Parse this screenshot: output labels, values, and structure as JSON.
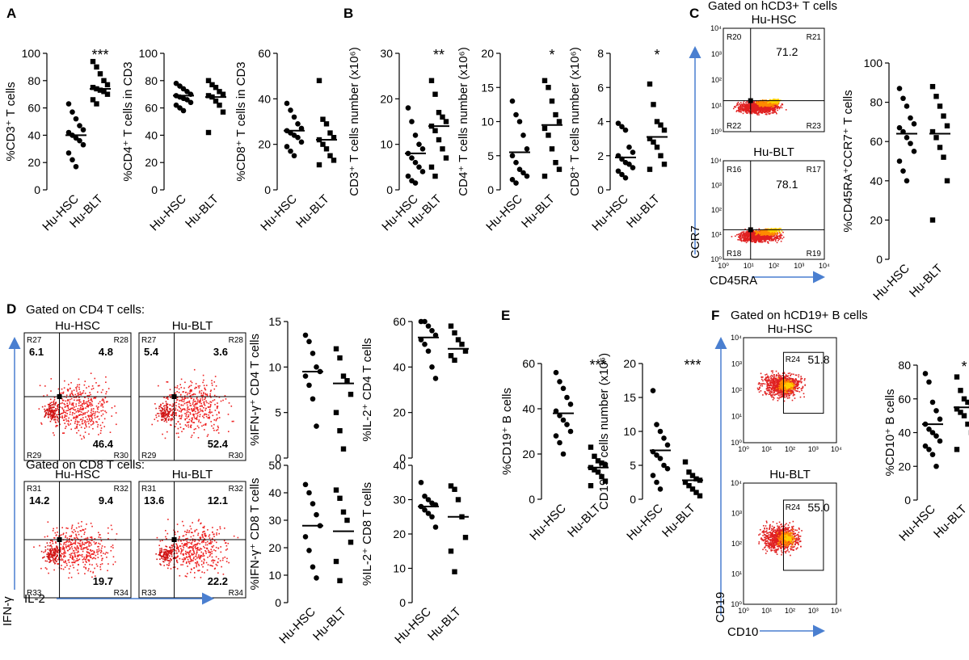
{
  "panels": {
    "A": "A",
    "B": "B",
    "C": "C",
    "D": "D",
    "E": "E",
    "F": "F"
  },
  "group_labels": [
    "Hu-HSC",
    "Hu-BLT"
  ],
  "titles": {
    "C_gate": "Gated on hCD3+ T cells",
    "D_gate_cd4": "Gated on CD4 T cells:",
    "D_gate_cd8": "Gated on CD8 T cells:",
    "F_gate": "Gated on hCD19+ B cells"
  },
  "flow": {
    "C1": {
      "title": "Hu-HSC",
      "value": "71.2",
      "regions": [
        "R20",
        "R21",
        "R22",
        "R23"
      ]
    },
    "C2": {
      "title": "Hu-BLT",
      "value": "78.1",
      "regions": [
        "R16",
        "R17",
        "R18",
        "R19"
      ]
    },
    "C_axes": {
      "y": "CCR7",
      "x": "CD45RA"
    },
    "D_cd4_hsc": {
      "title": "Hu-HSC",
      "q": [
        "6.1",
        "4.8",
        "46.4"
      ],
      "regions": [
        "R27",
        "R28",
        "R29",
        "R30"
      ]
    },
    "D_cd4_blt": {
      "title": "Hu-BLT",
      "q": [
        "5.4",
        "3.6",
        "52.4"
      ],
      "regions": [
        "R27",
        "R28",
        "R29",
        "R30"
      ]
    },
    "D_cd8_hsc": {
      "title": "Hu-HSC",
      "q": [
        "14.2",
        "9.4",
        "19.7"
      ],
      "regions": [
        "R31",
        "R32",
        "R33",
        "R34"
      ]
    },
    "D_cd8_blt": {
      "title": "Hu-BLT",
      "q": [
        "13.6",
        "12.1",
        "22.2"
      ],
      "regions": [
        "R31",
        "R32",
        "R33",
        "R34"
      ]
    },
    "D_axes": {
      "y": "IFN-γ",
      "x": "IL-2"
    },
    "F1": {
      "title": "Hu-HSC",
      "value": "51.8",
      "region": "R24"
    },
    "F2": {
      "title": "Hu-BLT",
      "value": "55.0",
      "region": "R24"
    },
    "F_axes": {
      "y": "CD19",
      "x": "CD10"
    },
    "log_ticks": [
      "10⁰",
      "10¹",
      "10²",
      "10³",
      "10⁴"
    ]
  },
  "chart_data": [
    {
      "id": "A1",
      "type": "scatter",
      "ylabel": "%CD3⁺ T cells",
      "ylim": [
        0,
        100
      ],
      "yticks": [
        0,
        20,
        40,
        60,
        80,
        100
      ],
      "categories": [
        "Hu-HSC",
        "Hu-BLT"
      ],
      "sig": "***",
      "series": [
        {
          "name": "Hu-HSC",
          "values": [
            63,
            57,
            52,
            47,
            44,
            42,
            40,
            38,
            36,
            33,
            27,
            22,
            17
          ],
          "mean": 40
        },
        {
          "name": "Hu-BLT",
          "values": [
            94,
            90,
            85,
            80,
            77,
            75,
            74,
            73,
            72,
            70,
            66,
            63
          ],
          "mean": 74
        }
      ]
    },
    {
      "id": "A2",
      "type": "scatter",
      "ylabel": "%CD4⁺ T cells in CD3",
      "ylim": [
        0,
        100
      ],
      "yticks": [
        0,
        20,
        40,
        60,
        80,
        100
      ],
      "categories": [
        "Hu-HSC",
        "Hu-BLT"
      ],
      "sig": "",
      "series": [
        {
          "name": "Hu-HSC",
          "values": [
            78,
            76,
            74,
            72,
            70,
            69,
            68,
            67,
            66,
            64,
            62,
            60,
            58
          ],
          "mean": 69
        },
        {
          "name": "Hu-BLT",
          "values": [
            80,
            77,
            75,
            72,
            70,
            69,
            68,
            65,
            62,
            57,
            42
          ],
          "mean": 68
        }
      ]
    },
    {
      "id": "A3",
      "type": "scatter",
      "ylabel": "%CD8⁺ T cells in CD3",
      "ylim": [
        0,
        60
      ],
      "yticks": [
        0,
        20,
        40,
        60
      ],
      "categories": [
        "Hu-HSC",
        "Hu-BLT"
      ],
      "sig": "",
      "series": [
        {
          "name": "Hu-HSC",
          "values": [
            38,
            35,
            32,
            29,
            27,
            26,
            25,
            24,
            23,
            21,
            19,
            17,
            15
          ],
          "mean": 26
        },
        {
          "name": "Hu-BLT",
          "values": [
            48,
            31,
            29,
            25,
            23,
            22,
            20,
            18,
            15,
            13,
            11
          ],
          "mean": 22
        }
      ]
    },
    {
      "id": "B1",
      "type": "scatter",
      "ylabel": "CD3⁺ T cells number (x10⁶)",
      "ylim": [
        0,
        30
      ],
      "yticks": [
        0,
        10,
        20,
        30
      ],
      "categories": [
        "Hu-HSC",
        "Hu-BLT"
      ],
      "sig": "**",
      "series": [
        {
          "name": "Hu-HSC",
          "values": [
            18,
            15,
            12,
            10,
            9,
            8,
            7,
            6,
            5,
            4,
            3,
            2,
            1.5
          ],
          "mean": 8
        },
        {
          "name": "Hu-BLT",
          "values": [
            24,
            21,
            17,
            16,
            15,
            14,
            13,
            11,
            9,
            7,
            5,
            3
          ],
          "mean": 14
        }
      ]
    },
    {
      "id": "B2",
      "type": "scatter",
      "ylabel": "CD4⁺ T cells number (x10⁶)",
      "ylim": [
        0,
        20
      ],
      "yticks": [
        0,
        5,
        10,
        15,
        20
      ],
      "categories": [
        "Hu-HSC",
        "Hu-BLT"
      ],
      "sig": "*",
      "series": [
        {
          "name": "Hu-HSC",
          "values": [
            13,
            11,
            10,
            8,
            6,
            5,
            4,
            3,
            2.5,
            2,
            1.5,
            1
          ],
          "mean": 5.5
        },
        {
          "name": "Hu-BLT",
          "values": [
            16,
            15,
            13,
            11,
            10,
            9,
            8,
            6,
            4,
            3,
            2
          ],
          "mean": 9.5
        }
      ]
    },
    {
      "id": "B3",
      "type": "scatter",
      "ylabel": "CD8⁺ T cells number (x10⁶)",
      "ylim": [
        0,
        8
      ],
      "yticks": [
        0,
        2,
        4,
        6,
        8
      ],
      "categories": [
        "Hu-HSC",
        "Hu-BLT"
      ],
      "sig": "*",
      "series": [
        {
          "name": "Hu-HSC",
          "values": [
            3.9,
            3.7,
            3.5,
            2.5,
            2.2,
            2,
            1.8,
            1.6,
            1.5,
            1.3,
            1.1,
            0.9,
            0.7
          ],
          "mean": 1.9
        },
        {
          "name": "Hu-BLT",
          "values": [
            6.2,
            5,
            4,
            3.8,
            3.5,
            3,
            2.8,
            2.5,
            2,
            1.5,
            1.2
          ],
          "mean": 3.1
        }
      ]
    },
    {
      "id": "C",
      "type": "scatter",
      "ylabel": "%CD45RA⁺CCR7⁺ T cells",
      "ylim": [
        0,
        100
      ],
      "yticks": [
        0,
        20,
        40,
        60,
        80,
        100
      ],
      "categories": [
        "Hu-HSC",
        "Hu-BLT"
      ],
      "sig": "",
      "series": [
        {
          "name": "Hu-HSC",
          "values": [
            87,
            82,
            78,
            72,
            69,
            67,
            65,
            62,
            59,
            55,
            50,
            45,
            40
          ],
          "mean": 64
        },
        {
          "name": "Hu-BLT",
          "values": [
            88,
            83,
            78,
            73,
            68,
            65,
            62,
            57,
            52,
            40,
            20
          ],
          "mean": 64
        }
      ]
    },
    {
      "id": "D1",
      "type": "scatter",
      "ylabel": "%IFN-γ⁺ CD4 T cells",
      "ylim": [
        0,
        15
      ],
      "yticks": [
        0,
        5,
        10,
        15
      ],
      "categories": [
        "Hu-HSC",
        "Hu-BLT"
      ],
      "sig": "",
      "series": [
        {
          "name": "Hu-HSC",
          "values": [
            13.5,
            12.8,
            11.5,
            10,
            9.5,
            9,
            8,
            6.5,
            3.5
          ],
          "mean": 9.5
        },
        {
          "name": "Hu-BLT",
          "values": [
            12,
            11,
            9,
            8.5,
            7,
            5,
            3,
            1
          ],
          "mean": 8.2
        }
      ]
    },
    {
      "id": "D2",
      "type": "scatter",
      "ylabel": "%IL-2⁺ CD4 T cells",
      "ylim": [
        0,
        60
      ],
      "yticks": [
        0,
        20,
        40,
        60
      ],
      "categories": [
        "Hu-HSC",
        "Hu-BLT"
      ],
      "sig": "",
      "series": [
        {
          "name": "Hu-HSC",
          "values": [
            62,
            60,
            58,
            56,
            54,
            52,
            50,
            47,
            40,
            35
          ],
          "mean": 53
        },
        {
          "name": "Hu-BLT",
          "values": [
            58,
            55,
            52,
            50,
            47,
            45,
            43
          ],
          "mean": 48
        }
      ]
    },
    {
      "id": "D3",
      "type": "scatter",
      "ylabel": "%IFN-γ⁺ CD8 T cells",
      "ylim": [
        0,
        50
      ],
      "yticks": [
        0,
        10,
        20,
        30,
        40,
        50
      ],
      "categories": [
        "Hu-HSC",
        "Hu-BLT"
      ],
      "sig": "",
      "series": [
        {
          "name": "Hu-HSC",
          "values": [
            43,
            40,
            36,
            32,
            28,
            24,
            19,
            13,
            9
          ],
          "mean": 28
        },
        {
          "name": "Hu-BLT",
          "values": [
            41,
            38,
            33,
            30,
            22,
            15,
            8
          ],
          "mean": 26
        }
      ]
    },
    {
      "id": "D4",
      "type": "scatter",
      "ylabel": "%IL-2⁺ CD8 T cells",
      "ylim": [
        0,
        40
      ],
      "yticks": [
        0,
        10,
        20,
        30,
        40
      ],
      "categories": [
        "Hu-HSC",
        "Hu-BLT"
      ],
      "sig": "",
      "series": [
        {
          "name": "Hu-HSC",
          "values": [
            35,
            31,
            30,
            29,
            28.5,
            28,
            27,
            26,
            25,
            22
          ],
          "mean": 28
        },
        {
          "name": "Hu-BLT",
          "values": [
            34,
            33,
            30,
            25,
            19,
            15,
            9
          ],
          "mean": 25
        }
      ]
    },
    {
      "id": "E1",
      "type": "scatter",
      "ylabel": "%CD19⁺ B cells",
      "ylim": [
        0,
        60
      ],
      "yticks": [
        0,
        20,
        40,
        60
      ],
      "categories": [
        "Hu-HSC",
        "Hu-BLT"
      ],
      "sig": "***",
      "series": [
        {
          "name": "Hu-HSC",
          "values": [
            56,
            52,
            49,
            45,
            42,
            39,
            37,
            35,
            33,
            30,
            28,
            25,
            20
          ],
          "mean": 38
        },
        {
          "name": "Hu-BLT",
          "values": [
            23,
            19,
            17,
            16,
            15,
            14,
            13,
            12,
            10,
            8,
            6
          ],
          "mean": 14
        }
      ]
    },
    {
      "id": "E2",
      "type": "scatter",
      "ylabel": "CD19⁺ B cells number (x10⁶)",
      "ylim": [
        0,
        20
      ],
      "yticks": [
        0,
        5,
        10,
        15,
        20
      ],
      "categories": [
        "Hu-HSC",
        "Hu-BLT"
      ],
      "sig": "***",
      "series": [
        {
          "name": "Hu-HSC",
          "values": [
            16,
            11,
            10,
            9,
            8,
            7,
            6.5,
            6,
            5,
            4.5,
            3.5,
            2.5,
            1.5
          ],
          "mean": 7.2
        },
        {
          "name": "Hu-BLT",
          "values": [
            5.5,
            4,
            3.5,
            3,
            2.8,
            2.5,
            2,
            1.5,
            1,
            0.5
          ],
          "mean": 2.8
        }
      ]
    },
    {
      "id": "F",
      "type": "scatter",
      "ylabel": "%CD10⁺ B cells",
      "ylim": [
        0,
        80
      ],
      "yticks": [
        0,
        20,
        40,
        60,
        80
      ],
      "categories": [
        "Hu-HSC",
        "Hu-BLT"
      ],
      "sig": "*",
      "series": [
        {
          "name": "Hu-HSC",
          "values": [
            75,
            70,
            58,
            53,
            48,
            45,
            42,
            40,
            38,
            35,
            32,
            30,
            27,
            20
          ],
          "mean": 45
        },
        {
          "name": "Hu-BLT",
          "values": [
            73,
            65,
            60,
            58,
            56,
            54,
            52,
            50,
            45,
            40,
            30
          ],
          "mean": 55
        }
      ]
    }
  ]
}
